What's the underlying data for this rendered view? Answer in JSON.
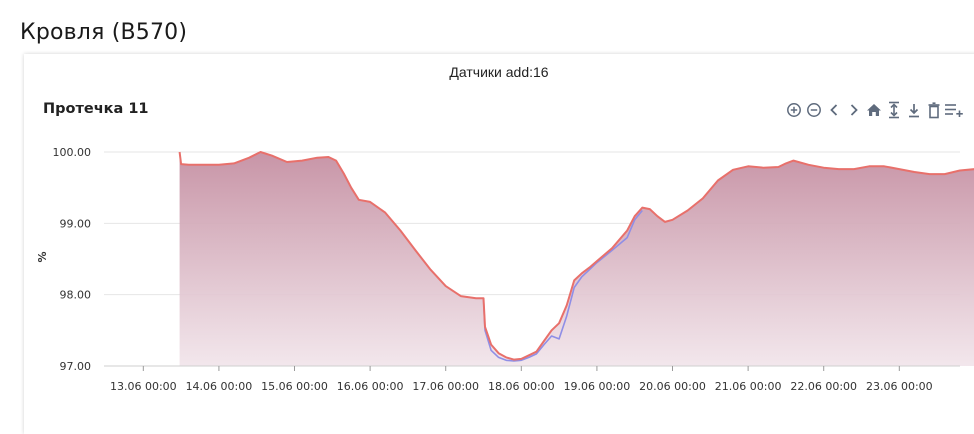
{
  "page": {
    "title": "Кровля (B570)"
  },
  "card": {
    "header": "Датчики add:16"
  },
  "colors": {
    "area_top": "#c58fa2",
    "area_bottom": "#f1e4ea",
    "line_main": "#e8706b",
    "line_secondary": "#8f8ee6",
    "grid": "#e6e6e6",
    "icon": "#5f6b7d"
  },
  "toolbar": {
    "items": [
      "zoom-in-icon",
      "zoom-out-icon",
      "pan-left-icon",
      "pan-right-icon",
      "home-icon",
      "fit-vertical-icon",
      "download-icon",
      "delete-icon",
      "add-menu-icon"
    ]
  },
  "chart_data": {
    "type": "area",
    "title": "Протечка 11",
    "xlabel": "",
    "ylabel": "%",
    "ylim": [
      97.0,
      100.0
    ],
    "y_ticks": [
      "97.00",
      "98.00",
      "99.00",
      "100.00"
    ],
    "x_tick_labels": [
      "13.06 00:00",
      "14.06 00:00",
      "15.06 00:00",
      "16.06 00:00",
      "17.06 00:00",
      "18.06 00:00",
      "19.06 00:00",
      "20.06 00:00",
      "21.06 00:00",
      "22.06 00:00",
      "23.06 00:00"
    ],
    "grid": true,
    "legend": "none",
    "series": [
      {
        "x": [
          13.48,
          13.5,
          13.6,
          13.8,
          14.0,
          14.2,
          14.4,
          14.55,
          14.7,
          14.9,
          15.1,
          15.3,
          15.45,
          15.55,
          15.65,
          15.75,
          15.85,
          16.0,
          16.2,
          16.4,
          16.6,
          16.8,
          17.0,
          17.2,
          17.4,
          17.5,
          17.52,
          17.6,
          17.7,
          17.8,
          17.9,
          18.0,
          18.1,
          18.2,
          18.3,
          18.4,
          18.5,
          18.6,
          18.7,
          18.8,
          18.9,
          19.0,
          19.2,
          19.4,
          19.5,
          19.6,
          19.7,
          19.8,
          19.9,
          20.0,
          20.2,
          20.4,
          20.6,
          20.8,
          21.0,
          21.2,
          21.4,
          21.5,
          21.6,
          21.8,
          22.0,
          22.2,
          22.4,
          22.6,
          22.8,
          23.0,
          23.2,
          23.4,
          23.6,
          23.8,
          24.0,
          24.1
        ],
        "y": [
          100.0,
          99.83,
          99.82,
          99.82,
          99.82,
          99.84,
          99.92,
          100.0,
          99.95,
          99.86,
          99.88,
          99.92,
          99.93,
          99.88,
          99.7,
          99.5,
          99.33,
          99.3,
          99.15,
          98.9,
          98.62,
          98.35,
          98.12,
          97.98,
          97.95,
          97.95,
          97.55,
          97.3,
          97.18,
          97.12,
          97.09,
          97.1,
          97.15,
          97.2,
          97.35,
          97.5,
          97.6,
          97.85,
          98.2,
          98.3,
          98.38,
          98.47,
          98.65,
          98.9,
          99.1,
          99.22,
          99.2,
          99.1,
          99.02,
          99.05,
          99.18,
          99.35,
          99.6,
          99.75,
          99.8,
          99.78,
          99.79,
          99.84,
          99.88,
          99.82,
          99.78,
          99.76,
          99.76,
          99.8,
          99.8,
          99.76,
          99.72,
          99.69,
          99.69,
          99.74,
          99.76,
          99.7
        ]
      },
      {
        "x": [
          17.5,
          17.52,
          17.6,
          17.7,
          17.8,
          17.9,
          18.0,
          18.1,
          18.2,
          18.3,
          18.4,
          18.5,
          18.6,
          18.7,
          18.8,
          18.9,
          19.0,
          19.2,
          19.4,
          19.5,
          19.6
        ],
        "y": [
          97.95,
          97.5,
          97.22,
          97.12,
          97.08,
          97.07,
          97.08,
          97.12,
          97.17,
          97.3,
          97.42,
          97.38,
          97.7,
          98.1,
          98.25,
          98.35,
          98.45,
          98.62,
          98.8,
          99.05,
          99.18
        ]
      }
    ]
  }
}
